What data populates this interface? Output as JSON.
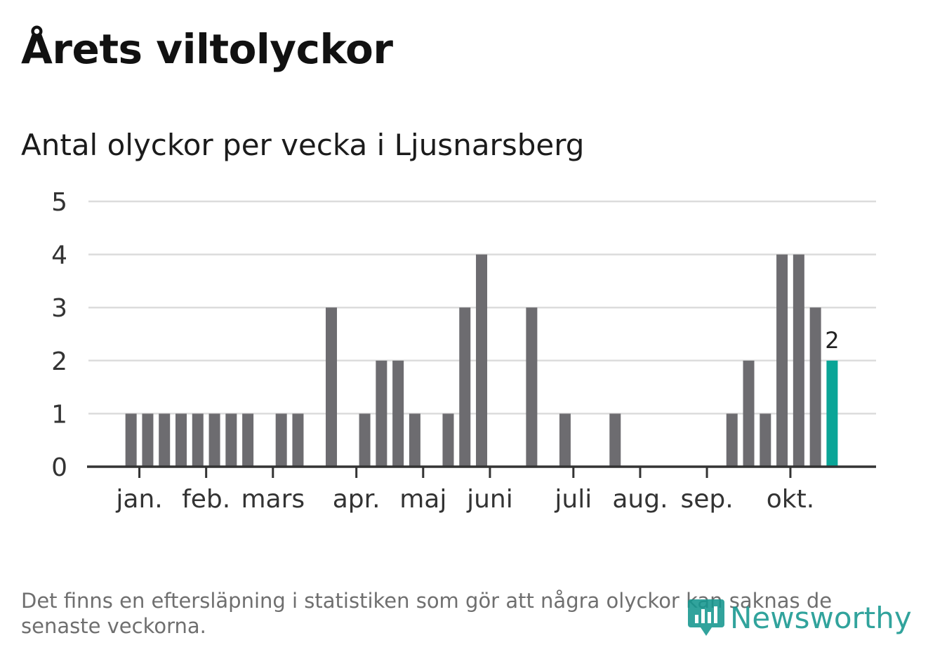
{
  "title": "Årets viltolyckor",
  "subtitle": "Antal olyckor per vecka i Ljusnarsberg",
  "footnote": "Det finns en eftersläpning i statistiken som gör att några olyckor kan saknas de senaste veckorna.",
  "brand": {
    "name": "Newsworthy",
    "color": "#15978f",
    "icon": "newsworthy-logo-icon"
  },
  "colors": {
    "bar": "#6d6c70",
    "highlight": "#0aa597",
    "grid": "#dcdcdc",
    "axis": "#333333",
    "tick_label": "#333333"
  },
  "chart_data": {
    "type": "bar",
    "title": "Antal olyckor per vecka i Ljusnarsberg",
    "xlabel": "",
    "ylabel": "",
    "ylim": [
      0,
      5
    ],
    "yticks": [
      0,
      1,
      2,
      3,
      4,
      5
    ],
    "grid": true,
    "weeks": [
      1,
      2,
      3,
      4,
      5,
      6,
      7,
      8,
      9,
      10,
      11,
      12,
      13,
      14,
      15,
      16,
      17,
      18,
      19,
      20,
      21,
      22,
      23,
      24,
      25,
      26,
      27,
      28,
      29,
      30,
      31,
      32,
      33,
      34,
      35,
      36,
      37,
      38,
      39,
      40,
      41,
      42,
      43,
      44,
      45,
      46
    ],
    "values": [
      0,
      0,
      1,
      1,
      1,
      1,
      1,
      1,
      1,
      1,
      0,
      1,
      1,
      0,
      3,
      0,
      1,
      2,
      2,
      1,
      0,
      1,
      3,
      4,
      0,
      0,
      3,
      0,
      1,
      0,
      0,
      1,
      0,
      0,
      0,
      0,
      0,
      0,
      1,
      2,
      1,
      4,
      4,
      3,
      2,
      0
    ],
    "month_ticks": [
      {
        "label": "jan.",
        "week": 3.5
      },
      {
        "label": "feb.",
        "week": 7.5
      },
      {
        "label": "mars",
        "week": 11.5
      },
      {
        "label": "apr.",
        "week": 16.5
      },
      {
        "label": "maj",
        "week": 20.5
      },
      {
        "label": "juni",
        "week": 24.5
      },
      {
        "label": "juli",
        "week": 29.5
      },
      {
        "label": "aug.",
        "week": 33.5
      },
      {
        "label": "sep.",
        "week": 37.5
      },
      {
        "label": "okt.",
        "week": 42.5
      }
    ],
    "highlight_week": 45,
    "highlight_label": "2"
  }
}
